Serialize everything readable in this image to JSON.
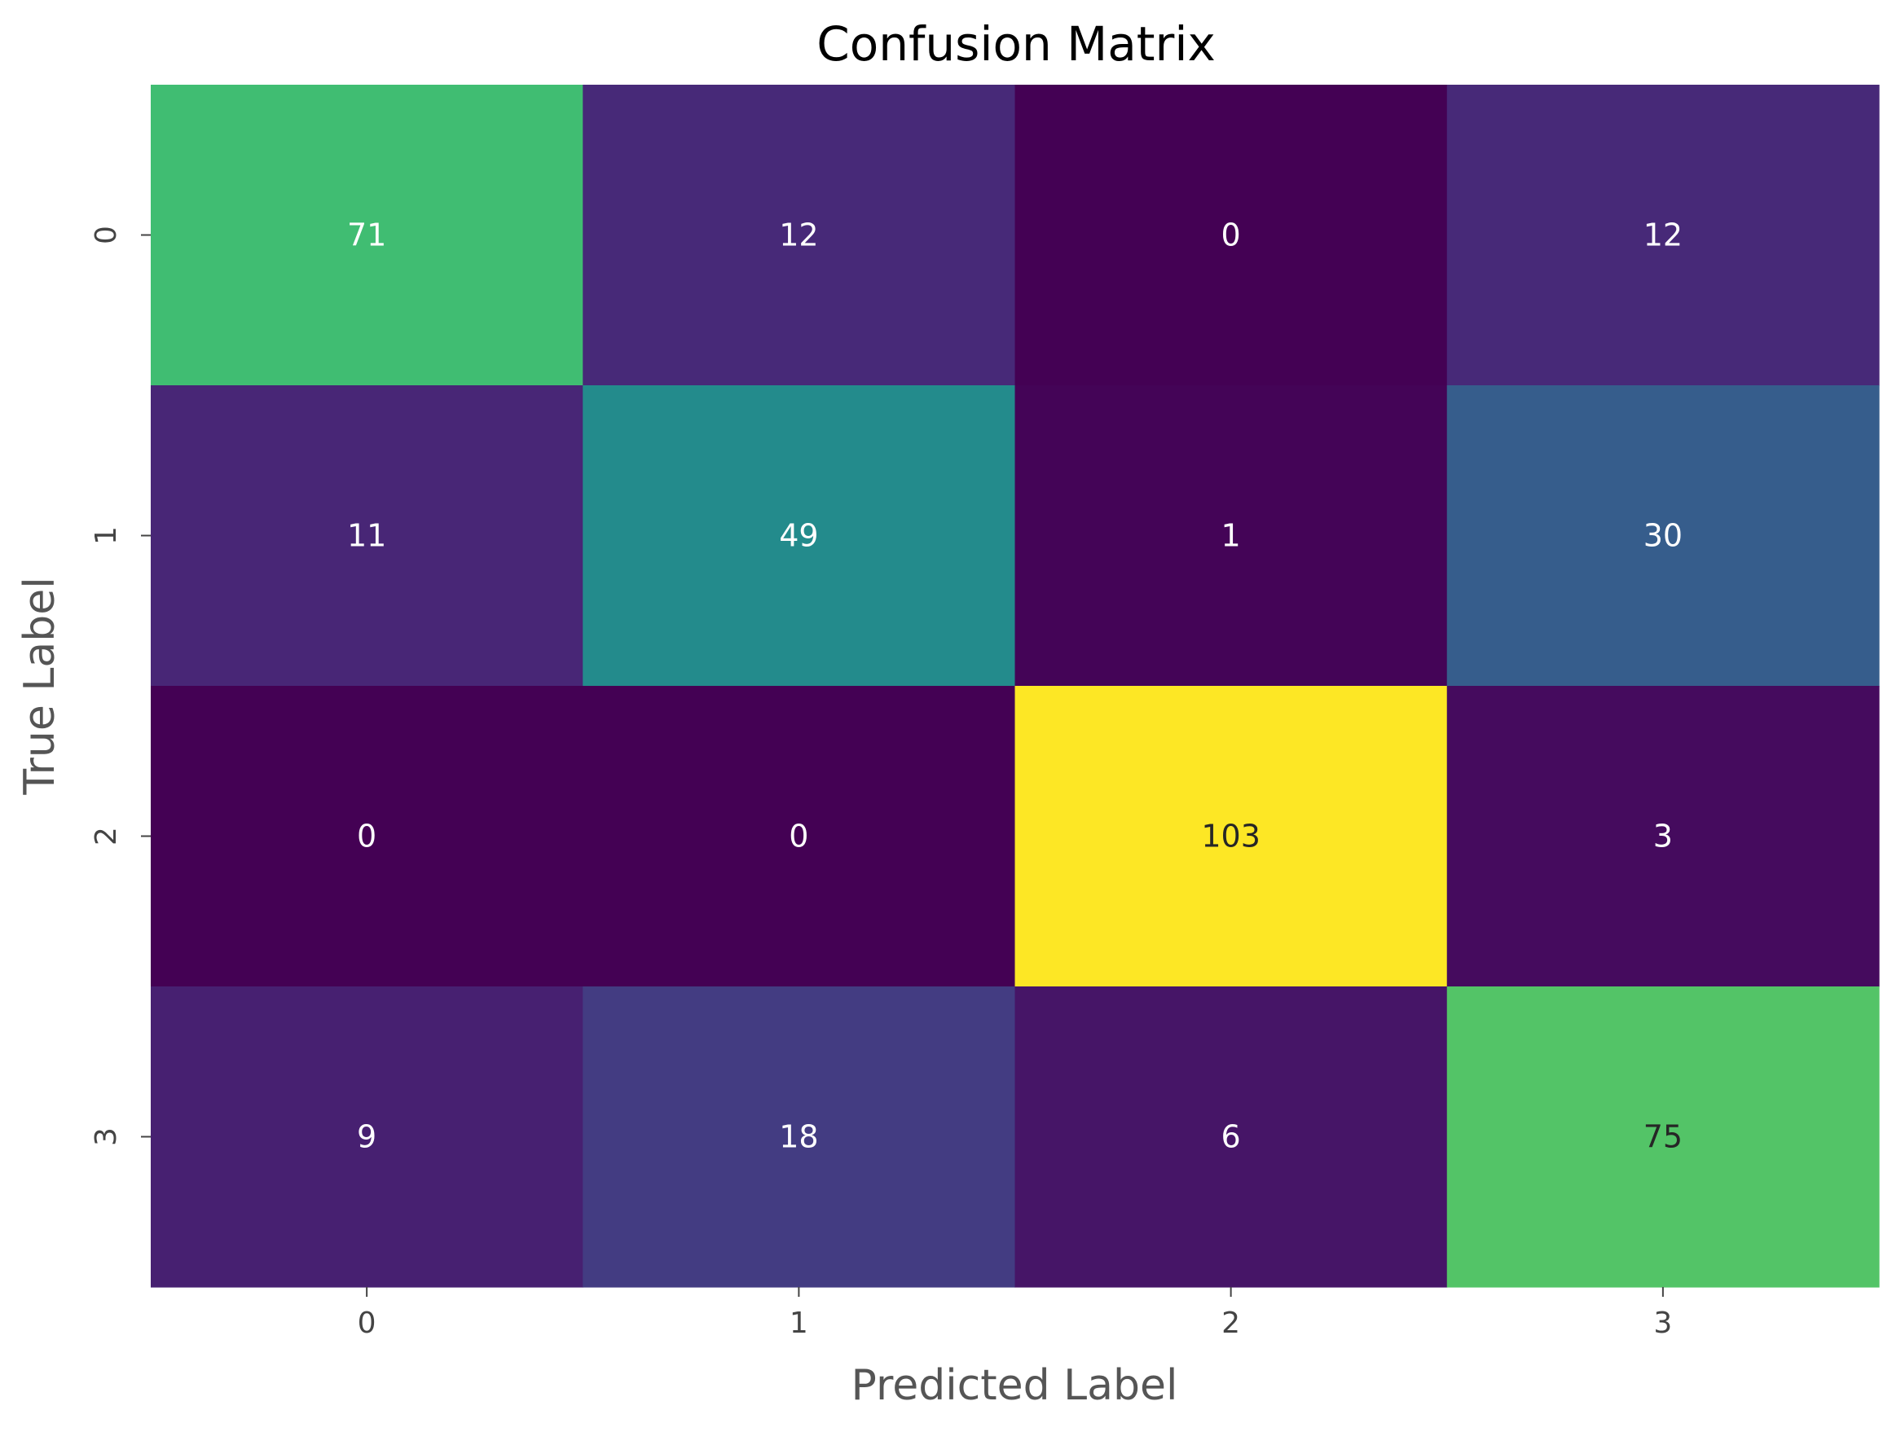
{
  "chart_data": {
    "type": "heatmap",
    "title": "Confusion Matrix",
    "xlabel": "Predicted Label",
    "ylabel": "True Label",
    "x_categories": [
      "0",
      "1",
      "2",
      "3"
    ],
    "y_categories": [
      "0",
      "1",
      "2",
      "3"
    ],
    "values": [
      [
        71,
        12,
        0,
        12
      ],
      [
        11,
        49,
        1,
        30
      ],
      [
        0,
        0,
        103,
        3
      ],
      [
        9,
        18,
        6,
        75
      ]
    ],
    "colormap": "viridis",
    "vmin": 0,
    "vmax": 103,
    "colorbar": false,
    "grid": false
  }
}
